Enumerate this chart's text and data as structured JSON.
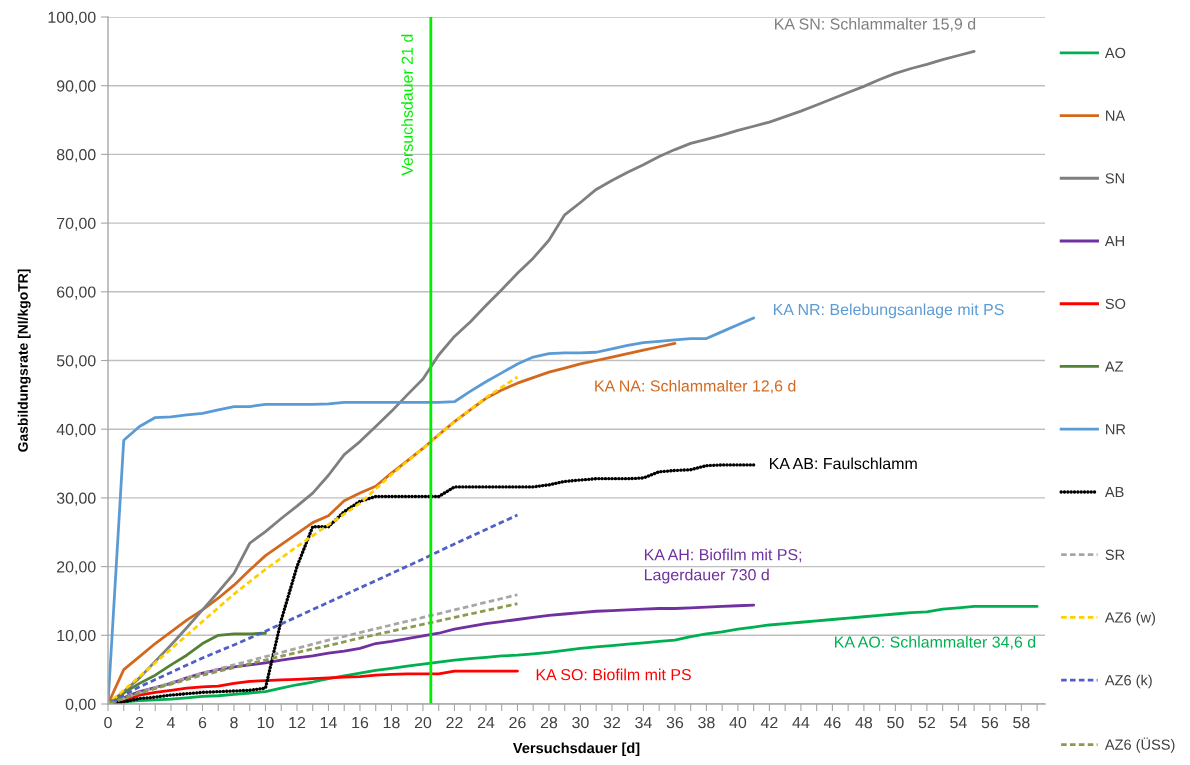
{
  "chart_data": {
    "type": "line",
    "xlabel": "Versuchsdauer [d]",
    "ylabel": "Gasbildungsrate [Nl/kgoTR]",
    "xlim": [
      0,
      59.5
    ],
    "ylim": [
      0,
      100
    ],
    "xticks": [
      0,
      {
        "value": 1,
        "label": null
      },
      2,
      {
        "value": 3,
        "label": null
      },
      4,
      {
        "value": 5,
        "label": null
      },
      6,
      {
        "value": 7,
        "label": null
      },
      8,
      {
        "value": 9,
        "label": null
      },
      10,
      {
        "value": 11,
        "label": null
      },
      12,
      {
        "value": 13,
        "label": null
      },
      14,
      {
        "value": 15,
        "label": null
      },
      16,
      {
        "value": 17,
        "label": null
      },
      18,
      {
        "value": 19,
        "label": null
      },
      20,
      {
        "value": 21,
        "label": null
      },
      22,
      {
        "value": 23,
        "label": null
      },
      24,
      {
        "value": 25,
        "label": null
      },
      26,
      {
        "value": 27,
        "label": null
      },
      28,
      {
        "value": 29,
        "label": null
      },
      30,
      {
        "value": 31,
        "label": null
      },
      32,
      {
        "value": 33,
        "label": null
      },
      34,
      {
        "value": 35,
        "label": null
      },
      36,
      {
        "value": 37,
        "label": null
      },
      38,
      {
        "value": 39,
        "label": null
      },
      40,
      {
        "value": 41,
        "label": null
      },
      42,
      {
        "value": 43,
        "label": null
      },
      44,
      {
        "value": 45,
        "label": null
      },
      46,
      {
        "value": 47,
        "label": null
      },
      48,
      {
        "value": 49,
        "label": null
      },
      50,
      {
        "value": 51,
        "label": null
      },
      52,
      {
        "value": 53,
        "label": null
      },
      54,
      {
        "value": 55,
        "label": null
      },
      56,
      {
        "value": 57,
        "label": null
      },
      58,
      {
        "value": 59,
        "label": null
      }
    ],
    "yticks": [
      {
        "value": 0,
        "label": "0,00"
      },
      {
        "value": 10,
        "label": "10,00"
      },
      {
        "value": 20,
        "label": "20,00"
      },
      {
        "value": 30,
        "label": "30,00"
      },
      {
        "value": 40,
        "label": "40,00"
      },
      {
        "value": 50,
        "label": "50,00"
      },
      {
        "value": 60,
        "label": "60,00"
      },
      {
        "value": 70,
        "label": "70,00"
      },
      {
        "value": 80,
        "label": "80,00"
      },
      {
        "value": 90,
        "label": "90,00"
      },
      {
        "value": 100,
        "label": "100,00"
      }
    ],
    "grid": "y",
    "legend": "right",
    "series": [
      {
        "name": "AO",
        "color": "#00b050",
        "line_style": "solid",
        "x": [
          0,
          1,
          2,
          3,
          4,
          5,
          6,
          7,
          8,
          9,
          10,
          11,
          12,
          13,
          14,
          15,
          16,
          17,
          18,
          19,
          20,
          21,
          22,
          23,
          24,
          25,
          26,
          27,
          28,
          29,
          30,
          31,
          32,
          33,
          34,
          35,
          36,
          37,
          38,
          39,
          40,
          41,
          42,
          43,
          44,
          45,
          46,
          47,
          48,
          49,
          50,
          51,
          52,
          53,
          54,
          55,
          56,
          57,
          58,
          59
        ],
        "values": [
          0,
          0.3,
          0.5,
          0.6,
          0.7,
          0.9,
          1.1,
          1.2,
          1.4,
          1.6,
          1.8,
          2.3,
          2.8,
          3.2,
          3.7,
          4.1,
          4.5,
          4.9,
          5.2,
          5.5,
          5.8,
          6.1,
          6.4,
          6.6,
          6.8,
          7.0,
          7.1,
          7.3,
          7.5,
          7.8,
          8.1,
          8.3,
          8.5,
          8.7,
          8.9,
          9.1,
          9.3,
          9.8,
          10.2,
          10.5,
          10.9,
          11.2,
          11.5,
          11.7,
          11.9,
          12.1,
          12.3,
          12.5,
          12.7,
          12.9,
          13.1,
          13.3,
          13.4,
          13.8,
          14.0,
          14.2,
          14.2,
          14.2,
          14.2,
          14.2
        ]
      },
      {
        "name": "NA",
        "color": "#d2691f",
        "line_style": "solid",
        "x": [
          0,
          1,
          2,
          3,
          4,
          5,
          6,
          7,
          8,
          9,
          10,
          11,
          12,
          13,
          14,
          15,
          16,
          17,
          18,
          19,
          20,
          21,
          22,
          23,
          24,
          25,
          26,
          27,
          28,
          29,
          30,
          31,
          32,
          33,
          34,
          35,
          36
        ],
        "values": [
          0,
          5.0,
          6.9,
          8.8,
          10.5,
          12.2,
          13.7,
          15.4,
          17.3,
          19.5,
          21.6,
          23.2,
          24.8,
          26.4,
          27.4,
          29.6,
          30.7,
          31.7,
          33.6,
          35.4,
          37.2,
          39.2,
          41.1,
          42.8,
          44.5,
          45.7,
          46.7,
          47.5,
          48.3,
          48.9,
          49.5,
          50.0,
          50.5,
          51.0,
          51.5,
          52.0,
          52.5
        ]
      },
      {
        "name": "SN",
        "color": "#7f7f7f",
        "line_style": "solid",
        "x": [
          0,
          1,
          2,
          3,
          4,
          5,
          6,
          7,
          8,
          9,
          10,
          11,
          12,
          13,
          14,
          15,
          16,
          17,
          18,
          19,
          20,
          21,
          22,
          23,
          24,
          25,
          26,
          27,
          28,
          29,
          30,
          31,
          32,
          33,
          34,
          35,
          36,
          37,
          38,
          39,
          40,
          41,
          42,
          43,
          44,
          45,
          46,
          47,
          48,
          49,
          50,
          51,
          52,
          53,
          54,
          55
        ],
        "values": [
          0,
          1.8,
          3.8,
          6.2,
          8.6,
          11.1,
          13.7,
          16.3,
          19.0,
          23.4,
          25.1,
          27.0,
          28.8,
          30.7,
          33.3,
          36.3,
          38.2,
          40.4,
          42.6,
          45.0,
          47.3,
          50.8,
          53.5,
          55.6,
          58.0,
          60.3,
          62.7,
          64.9,
          67.5,
          71.2,
          73.0,
          74.9,
          76.2,
          77.4,
          78.5,
          79.7,
          80.7,
          81.6,
          82.2,
          82.8,
          83.5,
          84.1,
          84.7,
          85.5,
          86.3,
          87.2,
          88.1,
          89.0,
          89.9,
          90.9,
          91.8,
          92.5,
          93.1,
          93.8,
          94.4,
          95.0
        ]
      },
      {
        "name": "AH",
        "color": "#7030a0",
        "line_style": "solid",
        "x": [
          0,
          1,
          2,
          3,
          4,
          5,
          6,
          7,
          8,
          9,
          10,
          11,
          12,
          13,
          14,
          15,
          16,
          17,
          18,
          19,
          20,
          21,
          22,
          23,
          24,
          25,
          26,
          27,
          28,
          29,
          30,
          31,
          32,
          33,
          34,
          35,
          36,
          37,
          38,
          39,
          40,
          41
        ],
        "values": [
          0,
          0.9,
          1.8,
          2.4,
          3.0,
          3.8,
          4.5,
          5.0,
          5.4,
          5.7,
          6.0,
          6.4,
          6.7,
          7.0,
          7.4,
          7.7,
          8.1,
          8.8,
          9.1,
          9.5,
          9.9,
          10.3,
          10.9,
          11.3,
          11.7,
          12.0,
          12.3,
          12.6,
          12.9,
          13.1,
          13.3,
          13.5,
          13.6,
          13.7,
          13.8,
          13.9,
          13.9,
          14.0,
          14.1,
          14.2,
          14.3,
          14.4
        ]
      },
      {
        "name": "SO",
        "color": "#ff0000",
        "line_style": "solid",
        "x": [
          0,
          1,
          2,
          3,
          4,
          5,
          6,
          7,
          8,
          9,
          10,
          11,
          12,
          13,
          14,
          15,
          16,
          17,
          18,
          19,
          20,
          21,
          22,
          23,
          24,
          25,
          26
        ],
        "values": [
          0,
          0.4,
          1.3,
          1.7,
          2.0,
          2.3,
          2.5,
          2.6,
          3.0,
          3.3,
          3.4,
          3.5,
          3.6,
          3.7,
          3.8,
          3.9,
          4.0,
          4.2,
          4.3,
          4.4,
          4.4,
          4.4,
          4.8,
          4.8,
          4.8,
          4.8,
          4.8
        ]
      },
      {
        "name": "AZ",
        "color": "#548235",
        "line_style": "solid",
        "x": [
          0,
          1,
          2,
          3,
          4,
          5,
          6,
          7,
          8,
          9,
          10
        ],
        "values": [
          0,
          1.6,
          3.0,
          4.2,
          5.7,
          7.1,
          8.8,
          10.0,
          10.2,
          10.2,
          10.3
        ]
      },
      {
        "name": "NR",
        "color": "#5b9bd5",
        "line_style": "solid",
        "x": [
          0,
          1,
          2,
          3,
          4,
          5,
          6,
          7,
          8,
          9,
          10,
          11,
          12,
          13,
          14,
          15,
          16,
          17,
          18,
          19,
          20,
          21,
          22,
          23,
          24,
          25,
          26,
          27,
          28,
          29,
          30,
          31,
          32,
          33,
          34,
          35,
          36,
          37,
          38,
          39,
          40,
          41
        ],
        "values": [
          0,
          38.4,
          40.4,
          41.7,
          41.8,
          42.1,
          42.3,
          42.8,
          43.3,
          43.3,
          43.6,
          43.6,
          43.6,
          43.6,
          43.7,
          43.9,
          43.9,
          43.9,
          43.9,
          43.9,
          43.9,
          43.9,
          44.0,
          45.5,
          46.9,
          48.2,
          49.5,
          50.5,
          51.0,
          51.1,
          51.1,
          51.2,
          51.7,
          52.2,
          52.6,
          52.8,
          53.0,
          53.2,
          53.2,
          54.2,
          55.2,
          56.2
        ]
      },
      {
        "name": "AB",
        "color": "#000000",
        "line_style": "dotted",
        "x": [
          0,
          1,
          2,
          3,
          4,
          5,
          6,
          7,
          8,
          9,
          10,
          11,
          12,
          13,
          14,
          15,
          16,
          17,
          18,
          19,
          20,
          21,
          22,
          23,
          24,
          25,
          26,
          27,
          28,
          29,
          30,
          31,
          32,
          33,
          34,
          35,
          36,
          37,
          38,
          39,
          40,
          41
        ],
        "values": [
          0,
          0.3,
          0.8,
          1.0,
          1.3,
          1.5,
          1.7,
          1.8,
          1.9,
          2.0,
          2.3,
          12.2,
          20.0,
          25.8,
          25.8,
          28.0,
          29.5,
          30.2,
          30.2,
          30.2,
          30.2,
          30.2,
          31.6,
          31.6,
          31.6,
          31.6,
          31.6,
          31.6,
          31.9,
          32.4,
          32.6,
          32.8,
          32.8,
          32.8,
          32.9,
          33.8,
          34.0,
          34.1,
          34.7,
          34.8,
          34.8,
          34.8
        ]
      },
      {
        "name": "SR",
        "color": "#a6a6a6",
        "line_style": "dashed",
        "x": [
          0,
          2,
          4,
          6,
          8,
          10,
          12,
          14,
          16,
          18,
          20,
          22,
          24,
          26
        ],
        "values": [
          0,
          1.7,
          3.1,
          4.5,
          5.7,
          6.9,
          8.1,
          9.3,
          10.4,
          11.5,
          12.6,
          13.7,
          14.8,
          15.9
        ]
      },
      {
        "name": "AZ6 (w)",
        "color": "#ffd000",
        "line_style": "dashed",
        "x": [
          0,
          2,
          4,
          6,
          8,
          10,
          12,
          14,
          16,
          18,
          20,
          22,
          24,
          26
        ],
        "values": [
          0,
          4.0,
          8.0,
          12.0,
          16.0,
          19.6,
          22.9,
          26.1,
          29.2,
          33.4,
          37.2,
          41.1,
          44.6,
          47.6
        ]
      },
      {
        "name": "AZ6 (k)",
        "color": "#4f5fc8",
        "line_style": "dashed",
        "x": [
          0,
          2,
          4,
          6,
          8,
          10,
          12,
          14,
          16,
          18,
          20,
          22,
          24,
          26
        ],
        "values": [
          0,
          2.5,
          4.6,
          6.7,
          8.6,
          10.6,
          12.7,
          14.8,
          16.9,
          19.0,
          21.1,
          23.3,
          25.4,
          27.5
        ]
      },
      {
        "name": "AZ6 (ÜSS)",
        "color": "#8a9a4e",
        "line_style": "dashed",
        "x": [
          0,
          2,
          4,
          6,
          8,
          10,
          12,
          14,
          16,
          18,
          20,
          22,
          24,
          26
        ],
        "values": [
          0,
          1.6,
          2.9,
          4.2,
          5.3,
          6.4,
          7.5,
          8.5,
          9.6,
          10.6,
          11.6,
          12.6,
          13.6,
          14.6
        ]
      }
    ],
    "ref_lines": [
      {
        "axis": "x",
        "value": 20.5,
        "label": "Versuchsdauer 21 d",
        "color": "#00ee00"
      }
    ],
    "annotations": [
      {
        "text": "KA SN: Schlammalter 15,9 d",
        "x": 55,
        "y": 95.0
      },
      {
        "text": "KA NR: Belebungsanlage mit PS",
        "x": 41,
        "y": 56.2
      },
      {
        "text": "KA NA: Schlammalter 12,6 d",
        "x": 36,
        "y": 52.5
      },
      {
        "text": "KA AB: Faulschlamm",
        "x": 41,
        "y": 34.8
      },
      {
        "text": "KA AH: Biofilm mit PS;\nLagerdauer 730 d",
        "x": 41,
        "y": 14.4
      },
      {
        "text": "KA AO: Schlammalter 34,6 d",
        "x": 59,
        "y": 14.2
      },
      {
        "text": "KA SO: Biofilm mit PS",
        "x": 26,
        "y": 4.8
      }
    ]
  }
}
